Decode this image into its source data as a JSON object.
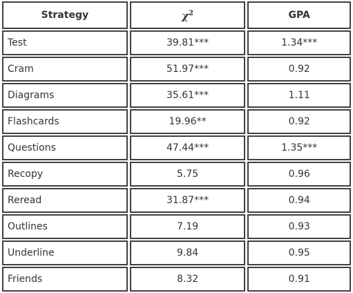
{
  "table": {
    "headers": {
      "strategy": "Strategy",
      "chi_symbol": "χ",
      "chi_exponent": "2",
      "gpa": "GPA"
    },
    "rows": [
      {
        "strategy": "Test",
        "chi": "39.81***",
        "gpa": "1.34***"
      },
      {
        "strategy": "Cram",
        "chi": "51.97***",
        "gpa": "0.92"
      },
      {
        "strategy": "Diagrams",
        "chi": "35.61***",
        "gpa": "1.11"
      },
      {
        "strategy": "Flashcards",
        "chi": "19.96**",
        "gpa": "0.92"
      },
      {
        "strategy": "Questions",
        "chi": "47.44***",
        "gpa": "1.35***"
      },
      {
        "strategy": "Recopy",
        "chi": "5.75",
        "gpa": "0.96"
      },
      {
        "strategy": "Reread",
        "chi": "31.87***",
        "gpa": "0.94"
      },
      {
        "strategy": "Outlines",
        "chi": "7.19",
        "gpa": "0.93"
      },
      {
        "strategy": "Underline",
        "chi": "9.84",
        "gpa": "0.95"
      },
      {
        "strategy": "Friends",
        "chi": "8.32",
        "gpa": "0.91"
      }
    ]
  }
}
